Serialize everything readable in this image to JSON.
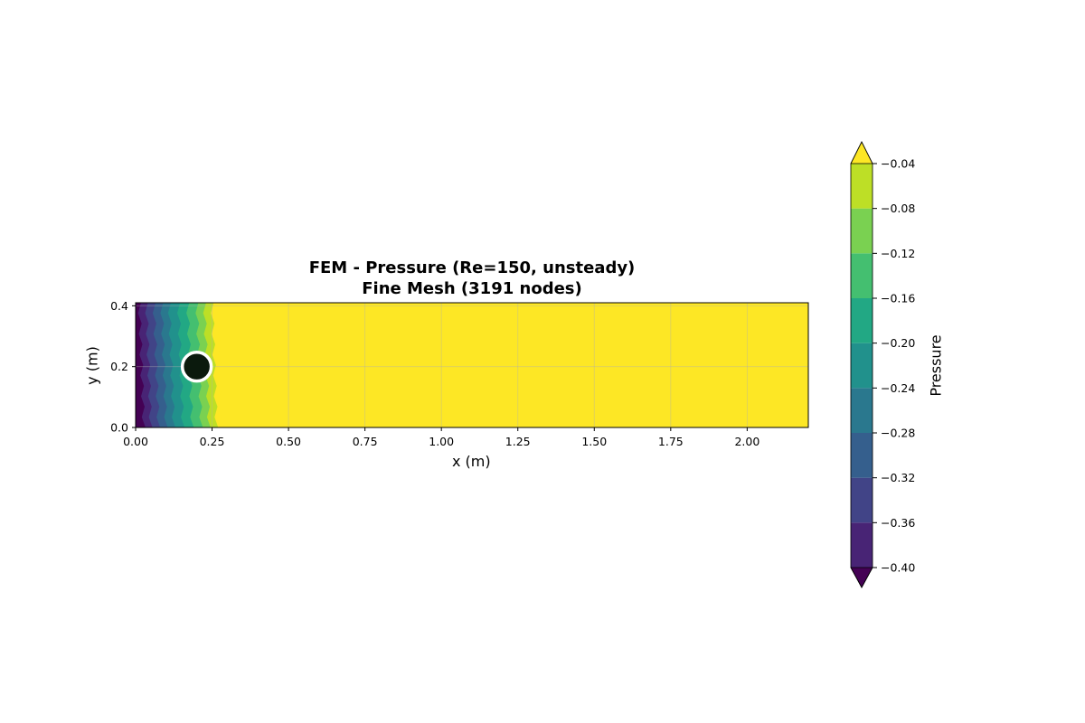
{
  "chart_data": {
    "type": "heatmap",
    "title_lines": [
      "FEM - Pressure (Re=150, unsteady)",
      "Fine Mesh (3191 nodes)"
    ],
    "xlabel": "x (m)",
    "ylabel": "y (m)",
    "xlim": [
      0.0,
      2.2
    ],
    "ylim": [
      0.0,
      0.41
    ],
    "xticks": [
      "0.00",
      "0.25",
      "0.50",
      "0.75",
      "1.00",
      "1.25",
      "1.50",
      "1.75",
      "2.00"
    ],
    "xtick_values": [
      0.0,
      0.25,
      0.5,
      0.75,
      1.0,
      1.25,
      1.5,
      1.75,
      2.0
    ],
    "yticks": [
      "0.0",
      "0.2",
      "0.4"
    ],
    "ytick_values": [
      0.0,
      0.2,
      0.4
    ],
    "grid": true,
    "colormap": "viridis",
    "colorbar": {
      "label": "Pressure",
      "levels": [
        -0.4,
        -0.36,
        -0.32,
        -0.28,
        -0.24,
        -0.2,
        -0.16,
        -0.12,
        -0.08,
        -0.04
      ],
      "tick_labels": [
        "−0.40",
        "−0.36",
        "−0.32",
        "−0.28",
        "−0.24",
        "−0.20",
        "−0.16",
        "−0.12",
        "−0.08",
        "−0.04"
      ],
      "band_colors": [
        "#482475",
        "#414487",
        "#355f8d",
        "#2a788e",
        "#21918c",
        "#22a884",
        "#44bf70",
        "#7ad151",
        "#bddf26"
      ],
      "under_color": "#440154",
      "over_color": "#fde725",
      "extend": "both"
    },
    "band_boundaries_x": [
      0.012,
      0.035,
      0.06,
      0.085,
      0.11,
      0.14,
      0.17,
      0.2,
      0.225,
      0.25,
      0.27
    ],
    "band_boundary_colors": [
      "#440154",
      "#482475",
      "#414487",
      "#355f8d",
      "#2a788e",
      "#21918c",
      "#22a884",
      "#44bf70",
      "#7ad151",
      "#bddf26",
      "#fde725"
    ],
    "cylinder": {
      "cx": 0.2,
      "cy": 0.2,
      "r": 0.05,
      "fill": "#0b1a0d",
      "stroke": "#ffffff"
    }
  }
}
